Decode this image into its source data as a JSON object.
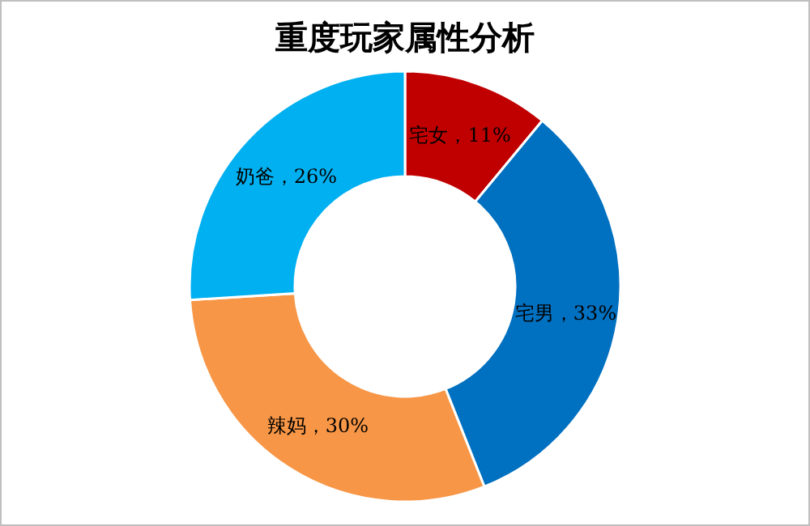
{
  "chart_data": {
    "type": "donut",
    "title": "重度玩家属性分析",
    "categories": [
      "宅女",
      "宅男",
      "辣妈",
      "奶爸"
    ],
    "values": [
      11,
      33,
      30,
      26
    ],
    "colors": [
      "#c00000",
      "#0070c0",
      "#f79646",
      "#00b0f0"
    ],
    "value_labels": [
      "，11%",
      "，33%",
      "，30%",
      "，26%"
    ]
  }
}
